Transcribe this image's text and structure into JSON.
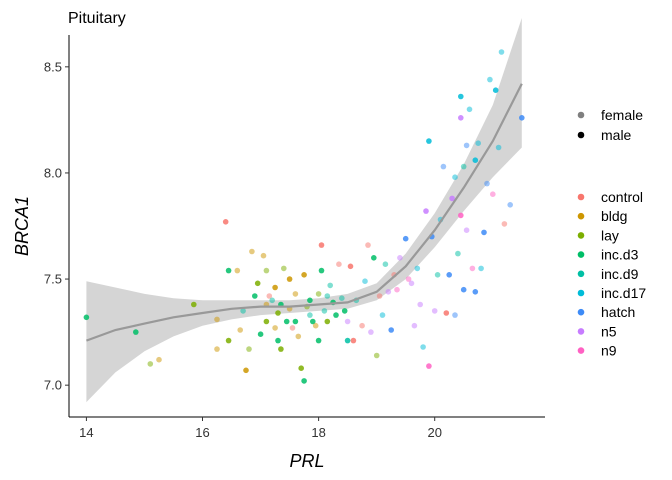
{
  "chart_data": {
    "type": "scatter",
    "title": "Pituitary",
    "xlabel": "PRL",
    "ylabel": "BRCA1",
    "xlim": [
      13.7,
      21.9
    ],
    "ylim": [
      6.85,
      8.65
    ],
    "x_ticks": [
      14,
      16,
      18,
      20
    ],
    "y_ticks": [
      7.0,
      7.5,
      8.0,
      8.5
    ],
    "x_tick_labels": [
      "14",
      "16",
      "18",
      "20"
    ],
    "y_tick_labels": [
      "7.0",
      "7.5",
      "8.0",
      "8.5"
    ],
    "grid": false,
    "legend_position": "right",
    "shape_legend": {
      "title": "",
      "entries": [
        {
          "label": "female",
          "alpha": 0.5
        },
        {
          "label": "male",
          "alpha": 1.0
        }
      ]
    },
    "color_legend": {
      "title": "",
      "entries": [
        {
          "label": "control",
          "color": "#F8766D"
        },
        {
          "label": "bldg",
          "color": "#CD9600"
        },
        {
          "label": "lay",
          "color": "#7CAE00"
        },
        {
          "label": "inc.d3",
          "color": "#00BE67"
        },
        {
          "label": "inc.d9",
          "color": "#00BFA4"
        },
        {
          "label": "inc.d17",
          "color": "#00BCD8"
        },
        {
          "label": "hatch",
          "color": "#3D8BF7"
        },
        {
          "label": "n5",
          "color": "#C77CFF"
        },
        {
          "label": "n9",
          "color": "#FF61C3"
        }
      ]
    },
    "smooth": {
      "method": "loess",
      "color": "#999999",
      "ribbon_color": "#D3D3D3",
      "x": [
        14.0,
        14.5,
        15.0,
        15.5,
        16.0,
        16.5,
        17.0,
        17.5,
        18.0,
        18.5,
        19.0,
        19.5,
        20.0,
        20.5,
        21.0,
        21.5
      ],
      "y": [
        7.21,
        7.26,
        7.29,
        7.32,
        7.34,
        7.36,
        7.37,
        7.37,
        7.38,
        7.39,
        7.44,
        7.56,
        7.73,
        7.93,
        8.15,
        8.42
      ],
      "lower": [
        6.92,
        7.06,
        7.16,
        7.23,
        7.28,
        7.31,
        7.33,
        7.34,
        7.35,
        7.36,
        7.4,
        7.5,
        7.65,
        7.82,
        7.98,
        8.12
      ],
      "upper": [
        7.49,
        7.46,
        7.43,
        7.41,
        7.4,
        7.4,
        7.4,
        7.4,
        7.41,
        7.43,
        7.48,
        7.62,
        7.81,
        8.04,
        8.32,
        8.73
      ]
    },
    "points": [
      {
        "x": 14.0,
        "y": 7.32,
        "group": "inc.d3",
        "sex": "male"
      },
      {
        "x": 14.85,
        "y": 7.25,
        "group": "inc.d3",
        "sex": "male"
      },
      {
        "x": 15.1,
        "y": 7.1,
        "group": "lay",
        "sex": "female"
      },
      {
        "x": 15.25,
        "y": 7.12,
        "group": "bldg",
        "sex": "female"
      },
      {
        "x": 15.85,
        "y": 7.38,
        "group": "lay",
        "sex": "male"
      },
      {
        "x": 16.25,
        "y": 7.17,
        "group": "bldg",
        "sex": "female"
      },
      {
        "x": 16.25,
        "y": 7.31,
        "group": "bldg",
        "sex": "female"
      },
      {
        "x": 16.4,
        "y": 7.77,
        "group": "control",
        "sex": "male"
      },
      {
        "x": 16.45,
        "y": 7.54,
        "group": "inc.d3",
        "sex": "male"
      },
      {
        "x": 16.45,
        "y": 7.21,
        "group": "lay",
        "sex": "male"
      },
      {
        "x": 16.6,
        "y": 7.54,
        "group": "bldg",
        "sex": "female"
      },
      {
        "x": 16.65,
        "y": 7.26,
        "group": "bldg",
        "sex": "female"
      },
      {
        "x": 16.7,
        "y": 7.35,
        "group": "inc.d9",
        "sex": "female"
      },
      {
        "x": 16.75,
        "y": 7.07,
        "group": "bldg",
        "sex": "male"
      },
      {
        "x": 16.8,
        "y": 7.17,
        "group": "lay",
        "sex": "female"
      },
      {
        "x": 16.85,
        "y": 7.63,
        "group": "bldg",
        "sex": "female"
      },
      {
        "x": 16.9,
        "y": 7.42,
        "group": "inc.d3",
        "sex": "male"
      },
      {
        "x": 16.95,
        "y": 7.48,
        "group": "lay",
        "sex": "male"
      },
      {
        "x": 17.0,
        "y": 7.24,
        "group": "inc.d3",
        "sex": "male"
      },
      {
        "x": 17.05,
        "y": 7.61,
        "group": "bldg",
        "sex": "female"
      },
      {
        "x": 17.1,
        "y": 7.54,
        "group": "lay",
        "sex": "female"
      },
      {
        "x": 17.1,
        "y": 7.38,
        "group": "bldg",
        "sex": "female"
      },
      {
        "x": 17.1,
        "y": 7.3,
        "group": "lay",
        "sex": "male"
      },
      {
        "x": 17.15,
        "y": 7.42,
        "group": "control",
        "sex": "female"
      },
      {
        "x": 17.2,
        "y": 7.4,
        "group": "inc.d9",
        "sex": "female"
      },
      {
        "x": 17.25,
        "y": 7.46,
        "group": "bldg",
        "sex": "male"
      },
      {
        "x": 17.25,
        "y": 7.27,
        "group": "bldg",
        "sex": "female"
      },
      {
        "x": 17.3,
        "y": 7.34,
        "group": "lay",
        "sex": "male"
      },
      {
        "x": 17.3,
        "y": 7.21,
        "group": "inc.d3",
        "sex": "male"
      },
      {
        "x": 17.35,
        "y": 7.17,
        "group": "lay",
        "sex": "male"
      },
      {
        "x": 17.35,
        "y": 7.38,
        "group": "inc.d3",
        "sex": "male"
      },
      {
        "x": 17.4,
        "y": 7.55,
        "group": "lay",
        "sex": "female"
      },
      {
        "x": 17.45,
        "y": 7.3,
        "group": "inc.d3",
        "sex": "male"
      },
      {
        "x": 17.5,
        "y": 7.5,
        "group": "bldg",
        "sex": "male"
      },
      {
        "x": 17.5,
        "y": 7.36,
        "group": "bldg",
        "sex": "female"
      },
      {
        "x": 17.55,
        "y": 7.27,
        "group": "control",
        "sex": "female"
      },
      {
        "x": 17.6,
        "y": 7.3,
        "group": "inc.d3",
        "sex": "male"
      },
      {
        "x": 17.6,
        "y": 7.43,
        "group": "bldg",
        "sex": "female"
      },
      {
        "x": 17.65,
        "y": 7.23,
        "group": "bldg",
        "sex": "female"
      },
      {
        "x": 17.7,
        "y": 7.08,
        "group": "lay",
        "sex": "male"
      },
      {
        "x": 17.75,
        "y": 7.02,
        "group": "inc.d3",
        "sex": "male"
      },
      {
        "x": 17.75,
        "y": 7.52,
        "group": "bldg",
        "sex": "male"
      },
      {
        "x": 17.8,
        "y": 7.37,
        "group": "lay",
        "sex": "female"
      },
      {
        "x": 17.85,
        "y": 7.4,
        "group": "inc.d3",
        "sex": "male"
      },
      {
        "x": 17.85,
        "y": 7.33,
        "group": "inc.d9",
        "sex": "female"
      },
      {
        "x": 17.9,
        "y": 7.3,
        "group": "inc.d3",
        "sex": "male"
      },
      {
        "x": 17.95,
        "y": 7.28,
        "group": "bldg",
        "sex": "female"
      },
      {
        "x": 18.0,
        "y": 7.43,
        "group": "lay",
        "sex": "female"
      },
      {
        "x": 18.0,
        "y": 7.21,
        "group": "inc.d3",
        "sex": "male"
      },
      {
        "x": 18.05,
        "y": 7.66,
        "group": "control",
        "sex": "male"
      },
      {
        "x": 18.05,
        "y": 7.54,
        "group": "inc.d3",
        "sex": "male"
      },
      {
        "x": 18.1,
        "y": 7.35,
        "group": "inc.d9",
        "sex": "female"
      },
      {
        "x": 18.15,
        "y": 7.3,
        "group": "lay",
        "sex": "male"
      },
      {
        "x": 18.15,
        "y": 7.42,
        "group": "inc.d9",
        "sex": "female"
      },
      {
        "x": 18.2,
        "y": 7.47,
        "group": "inc.d9",
        "sex": "female"
      },
      {
        "x": 18.25,
        "y": 7.39,
        "group": "inc.d3",
        "sex": "male"
      },
      {
        "x": 18.3,
        "y": 7.33,
        "group": "inc.d3",
        "sex": "male"
      },
      {
        "x": 18.35,
        "y": 7.57,
        "group": "control",
        "sex": "female"
      },
      {
        "x": 18.4,
        "y": 7.41,
        "group": "inc.d9",
        "sex": "female"
      },
      {
        "x": 18.45,
        "y": 7.35,
        "group": "inc.d3",
        "sex": "male"
      },
      {
        "x": 18.5,
        "y": 7.21,
        "group": "inc.d9",
        "sex": "male"
      },
      {
        "x": 18.5,
        "y": 7.3,
        "group": "n5",
        "sex": "female"
      },
      {
        "x": 18.55,
        "y": 7.56,
        "group": "control",
        "sex": "male"
      },
      {
        "x": 18.6,
        "y": 7.21,
        "group": "control",
        "sex": "male"
      },
      {
        "x": 18.65,
        "y": 7.4,
        "group": "inc.d9",
        "sex": "female"
      },
      {
        "x": 18.75,
        "y": 7.28,
        "group": "control",
        "sex": "female"
      },
      {
        "x": 18.8,
        "y": 7.49,
        "group": "inc.d17",
        "sex": "female"
      },
      {
        "x": 18.85,
        "y": 7.66,
        "group": "control",
        "sex": "female"
      },
      {
        "x": 18.9,
        "y": 7.25,
        "group": "n5",
        "sex": "female"
      },
      {
        "x": 18.95,
        "y": 7.6,
        "group": "inc.d3",
        "sex": "male"
      },
      {
        "x": 19.0,
        "y": 7.14,
        "group": "lay",
        "sex": "female"
      },
      {
        "x": 19.05,
        "y": 7.42,
        "group": "control",
        "sex": "female"
      },
      {
        "x": 19.1,
        "y": 7.33,
        "group": "inc.d17",
        "sex": "female"
      },
      {
        "x": 19.15,
        "y": 7.57,
        "group": "inc.d9",
        "sex": "female"
      },
      {
        "x": 19.2,
        "y": 7.44,
        "group": "n5",
        "sex": "female"
      },
      {
        "x": 19.25,
        "y": 7.26,
        "group": "hatch",
        "sex": "male"
      },
      {
        "x": 19.3,
        "y": 7.52,
        "group": "control",
        "sex": "female"
      },
      {
        "x": 19.35,
        "y": 7.45,
        "group": "n9",
        "sex": "female"
      },
      {
        "x": 19.4,
        "y": 7.6,
        "group": "n5",
        "sex": "female"
      },
      {
        "x": 19.5,
        "y": 7.69,
        "group": "hatch",
        "sex": "male"
      },
      {
        "x": 19.55,
        "y": 7.5,
        "group": "n9",
        "sex": "female"
      },
      {
        "x": 19.6,
        "y": 7.48,
        "group": "n5",
        "sex": "female"
      },
      {
        "x": 19.65,
        "y": 7.28,
        "group": "n5",
        "sex": "female"
      },
      {
        "x": 19.7,
        "y": 7.55,
        "group": "inc.d17",
        "sex": "female"
      },
      {
        "x": 19.75,
        "y": 7.38,
        "group": "n5",
        "sex": "female"
      },
      {
        "x": 19.8,
        "y": 7.18,
        "group": "inc.d17",
        "sex": "female"
      },
      {
        "x": 19.85,
        "y": 7.82,
        "group": "n5",
        "sex": "male"
      },
      {
        "x": 19.9,
        "y": 7.09,
        "group": "n9",
        "sex": "male"
      },
      {
        "x": 19.9,
        "y": 8.15,
        "group": "inc.d17",
        "sex": "male"
      },
      {
        "x": 19.95,
        "y": 7.7,
        "group": "hatch",
        "sex": "male"
      },
      {
        "x": 20.0,
        "y": 7.35,
        "group": "n5",
        "sex": "female"
      },
      {
        "x": 20.05,
        "y": 7.52,
        "group": "inc.d9",
        "sex": "female"
      },
      {
        "x": 20.1,
        "y": 7.78,
        "group": "inc.d17",
        "sex": "female"
      },
      {
        "x": 20.15,
        "y": 8.03,
        "group": "hatch",
        "sex": "female"
      },
      {
        "x": 20.2,
        "y": 7.34,
        "group": "control",
        "sex": "male"
      },
      {
        "x": 20.25,
        "y": 7.52,
        "group": "hatch",
        "sex": "male"
      },
      {
        "x": 20.3,
        "y": 7.88,
        "group": "n5",
        "sex": "male"
      },
      {
        "x": 20.35,
        "y": 7.98,
        "group": "inc.d17",
        "sex": "female"
      },
      {
        "x": 20.35,
        "y": 7.33,
        "group": "hatch",
        "sex": "female"
      },
      {
        "x": 20.4,
        "y": 7.62,
        "group": "inc.d9",
        "sex": "female"
      },
      {
        "x": 20.45,
        "y": 8.36,
        "group": "inc.d17",
        "sex": "male"
      },
      {
        "x": 20.45,
        "y": 7.8,
        "group": "n9",
        "sex": "male"
      },
      {
        "x": 20.45,
        "y": 8.26,
        "group": "n5",
        "sex": "male"
      },
      {
        "x": 20.5,
        "y": 7.45,
        "group": "hatch",
        "sex": "male"
      },
      {
        "x": 20.5,
        "y": 8.03,
        "group": "inc.d9",
        "sex": "female"
      },
      {
        "x": 20.55,
        "y": 7.73,
        "group": "n5",
        "sex": "female"
      },
      {
        "x": 20.55,
        "y": 8.13,
        "group": "hatch",
        "sex": "female"
      },
      {
        "x": 20.6,
        "y": 8.3,
        "group": "inc.d17",
        "sex": "female"
      },
      {
        "x": 20.65,
        "y": 7.55,
        "group": "n9",
        "sex": "female"
      },
      {
        "x": 20.7,
        "y": 7.44,
        "group": "hatch",
        "sex": "male"
      },
      {
        "x": 20.7,
        "y": 8.06,
        "group": "inc.d17",
        "sex": "male"
      },
      {
        "x": 20.75,
        "y": 8.14,
        "group": "inc.d17",
        "sex": "female"
      },
      {
        "x": 20.8,
        "y": 7.55,
        "group": "inc.d17",
        "sex": "female"
      },
      {
        "x": 20.85,
        "y": 7.72,
        "group": "hatch",
        "sex": "male"
      },
      {
        "x": 20.9,
        "y": 7.95,
        "group": "hatch",
        "sex": "female"
      },
      {
        "x": 20.95,
        "y": 8.44,
        "group": "inc.d17",
        "sex": "female"
      },
      {
        "x": 21.0,
        "y": 7.9,
        "group": "n9",
        "sex": "female"
      },
      {
        "x": 21.05,
        "y": 8.39,
        "group": "inc.d17",
        "sex": "male"
      },
      {
        "x": 21.1,
        "y": 8.12,
        "group": "inc.d17",
        "sex": "female"
      },
      {
        "x": 21.15,
        "y": 8.57,
        "group": "inc.d17",
        "sex": "female"
      },
      {
        "x": 21.2,
        "y": 7.76,
        "group": "control",
        "sex": "female"
      },
      {
        "x": 21.3,
        "y": 7.85,
        "group": "hatch",
        "sex": "female"
      },
      {
        "x": 21.5,
        "y": 8.26,
        "group": "hatch",
        "sex": "male"
      }
    ]
  }
}
